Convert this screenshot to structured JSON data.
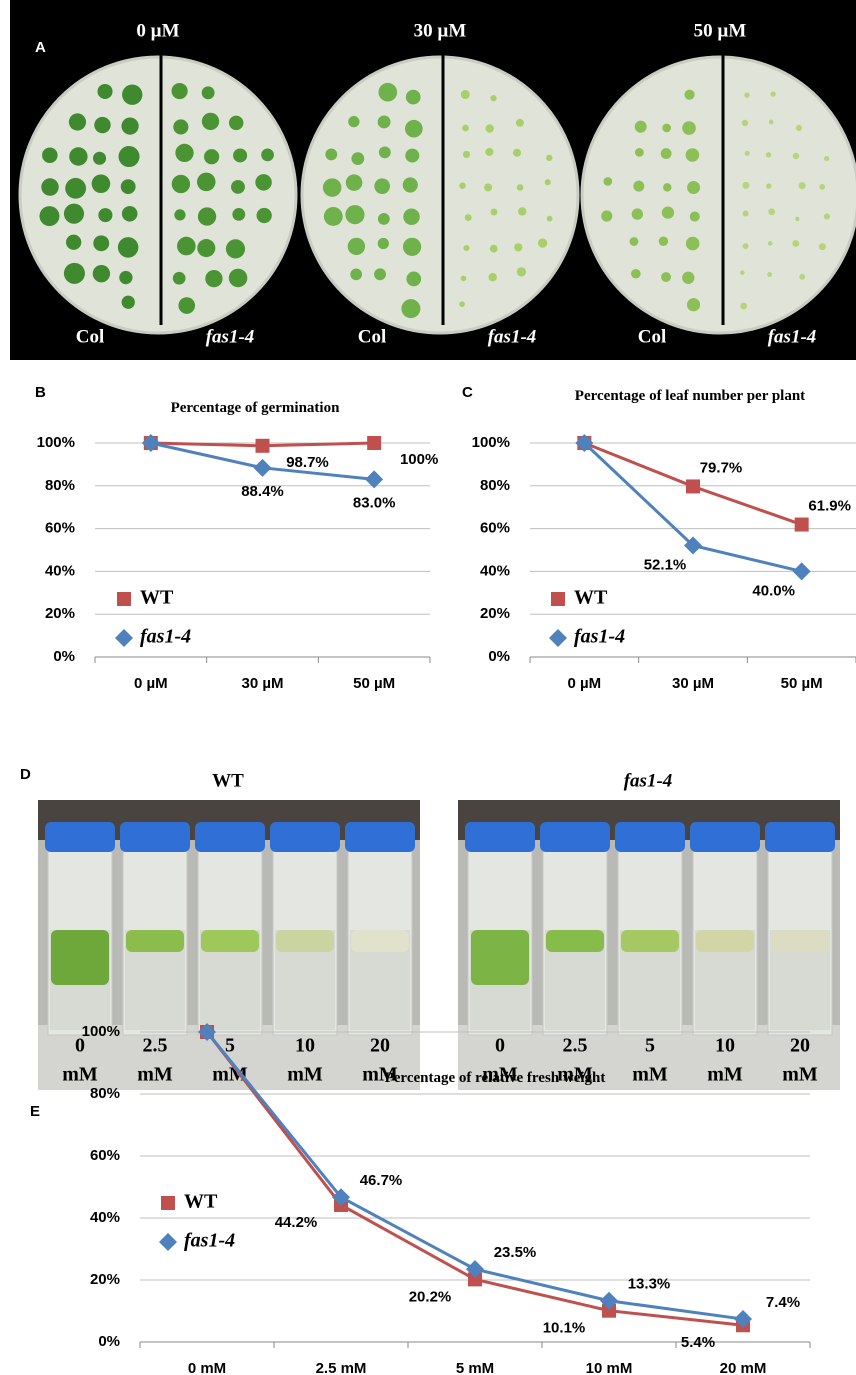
{
  "panel_a": {
    "label": "A",
    "concentrations": [
      "0 µM",
      "30 µM",
      "50 µM"
    ],
    "genotypes": [
      "Col",
      "fas1-4"
    ]
  },
  "panel_d": {
    "label": "D",
    "groups": [
      "WT",
      "fas1-4"
    ],
    "doses": [
      "0",
      "2.5",
      "5",
      "10",
      "20"
    ],
    "unit": "mM"
  },
  "chart_data": [
    {
      "type": "line",
      "panel": "B",
      "title": "Percentage of germination",
      "categories": [
        "0 µM",
        "30 µM",
        "50 µM"
      ],
      "series": [
        {
          "name": "WT",
          "color": "#c0504d",
          "marker": "square",
          "values": [
            100,
            98.7,
            100
          ],
          "value_labels": [
            null,
            "98.7%",
            "100%"
          ]
        },
        {
          "name": "fas1-4",
          "color": "#4f81bd",
          "marker": "diamond",
          "values": [
            100,
            88.4,
            83.0
          ],
          "value_labels": [
            null,
            "88.4%",
            "83.0%"
          ]
        }
      ],
      "ylim": [
        0,
        100
      ],
      "yticks": [
        {
          "value": 0,
          "label": "0%"
        },
        {
          "value": 20,
          "label": "20%"
        },
        {
          "value": 40,
          "label": "40%"
        },
        {
          "value": 60,
          "label": "60%"
        },
        {
          "value": 80,
          "label": "80%"
        },
        {
          "value": 100,
          "label": "100%"
        }
      ],
      "grid": true,
      "legend": "lower left"
    },
    {
      "type": "line",
      "panel": "C",
      "title": "Percentage of leaf number per plant",
      "categories": [
        "0 µM",
        "30 µM",
        "50 µM"
      ],
      "series": [
        {
          "name": "WT",
          "color": "#c0504d",
          "marker": "square",
          "values": [
            100,
            79.7,
            61.9
          ],
          "value_labels": [
            null,
            "79.7%",
            "61.9%"
          ]
        },
        {
          "name": "fas1-4",
          "color": "#4f81bd",
          "marker": "diamond",
          "values": [
            100,
            52.1,
            40.0
          ],
          "value_labels": [
            null,
            "52.1%",
            "40.0%"
          ]
        }
      ],
      "ylim": [
        0,
        100
      ],
      "yticks": [
        {
          "value": 0,
          "label": "0%"
        },
        {
          "value": 20,
          "label": "20%"
        },
        {
          "value": 40,
          "label": "40%"
        },
        {
          "value": 60,
          "label": "60%"
        },
        {
          "value": 80,
          "label": "80%"
        },
        {
          "value": 100,
          "label": "100%"
        }
      ],
      "grid": true,
      "legend": "lower left"
    },
    {
      "type": "line",
      "panel": "E",
      "title": "Percentage of relative fresh weight",
      "categories": [
        "0 mM",
        "2.5 mM",
        "5 mM",
        "10 mM",
        "20 mM"
      ],
      "series": [
        {
          "name": "WT",
          "color": "#c0504d",
          "marker": "square",
          "values": [
            100,
            44.2,
            20.2,
            10.1,
            5.4
          ],
          "value_labels": [
            null,
            "44.2%",
            "20.2%",
            "10.1%",
            "5.4%"
          ]
        },
        {
          "name": "fas1-4",
          "color": "#4f81bd",
          "marker": "diamond",
          "values": [
            100,
            46.7,
            23.5,
            13.3,
            7.4
          ],
          "value_labels": [
            null,
            "46.7%",
            "23.5%",
            "13.3%",
            "7.4%"
          ]
        }
      ],
      "ylim": [
        0,
        100
      ],
      "yticks": [
        {
          "value": 0,
          "label": "0%"
        },
        {
          "value": 20,
          "label": "20%"
        },
        {
          "value": 40,
          "label": "40%"
        },
        {
          "value": 60,
          "label": "60%"
        },
        {
          "value": 80,
          "label": "80%"
        },
        {
          "value": 100,
          "label": "100%"
        }
      ],
      "grid": true,
      "legend": "lower left"
    }
  ]
}
